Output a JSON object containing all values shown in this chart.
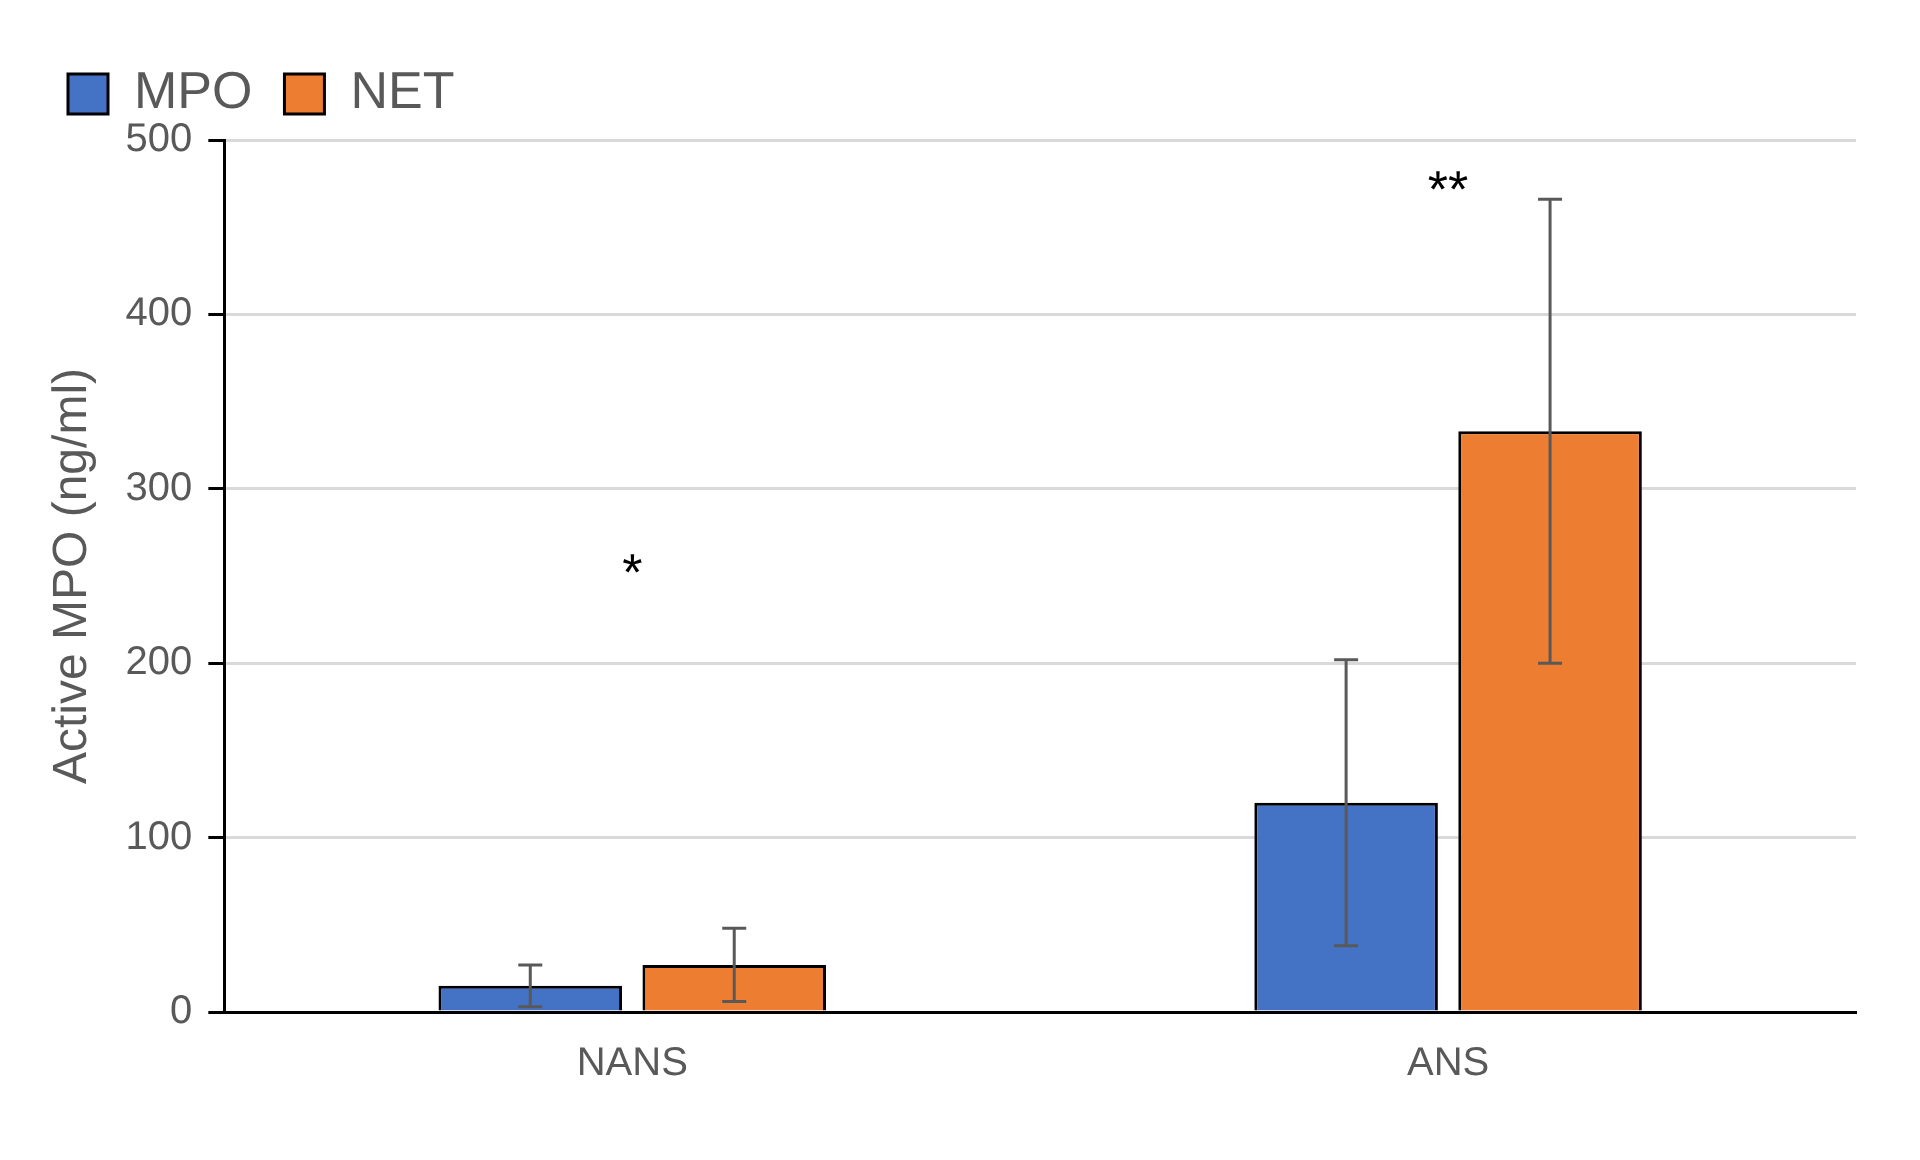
{
  "chart_data": {
    "type": "bar",
    "ylabel": "Active MPO (ng/ml)",
    "categories": [
      "NANS",
      "ANS"
    ],
    "series": [
      {
        "name": "MPO",
        "color": "#4472c4",
        "values": [
          15,
          120
        ],
        "errors": [
          12,
          82
        ]
      },
      {
        "name": "NET",
        "color": "#ed7d31",
        "values": [
          27,
          333
        ],
        "errors": [
          21,
          133
        ]
      }
    ],
    "ylim": [
      0,
      500
    ],
    "yticks": [
      0,
      100,
      200,
      300,
      400,
      500
    ],
    "grid": "y",
    "legend": "top left",
    "annotations": [
      "*",
      "**"
    ]
  }
}
